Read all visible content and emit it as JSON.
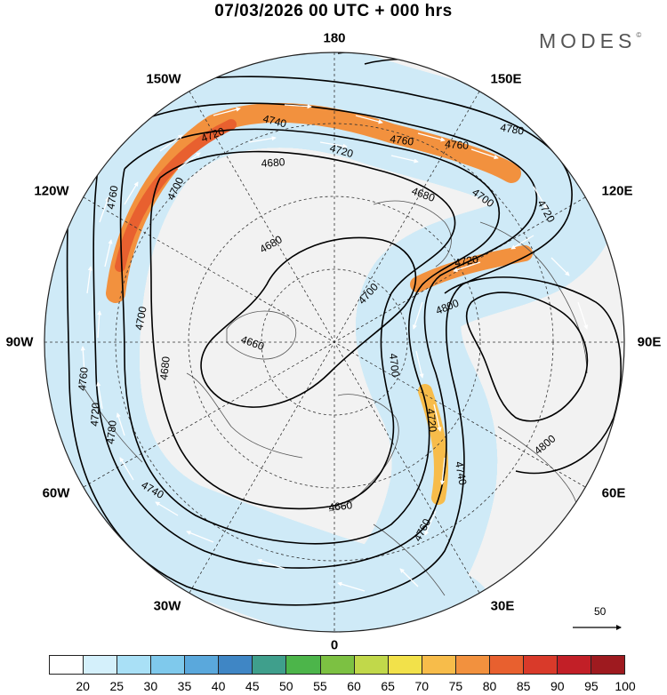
{
  "title": "07/03/2026  00 UTC  + 000 hrs",
  "brand": "MODES",
  "brand_mark": "©",
  "longitude_labels": {
    "lon_180": "180",
    "lon_150e": "150E",
    "lon_120e": "120E",
    "lon_90e": "90E",
    "lon_60e": "60E",
    "lon_30e": "30E",
    "lon_0": "0",
    "lon_30w": "30W",
    "lon_60w": "60W",
    "lon_90w": "90W",
    "lon_120w": "120W",
    "lon_150w": "150W"
  },
  "vector_scale_label": "50",
  "colorbar": {
    "ticks": [
      "20",
      "25",
      "30",
      "35",
      "40",
      "45",
      "50",
      "55",
      "60",
      "65",
      "70",
      "75",
      "80",
      "85",
      "90",
      "95",
      "100"
    ],
    "colors": [
      "#ffffff",
      "#d4f0fb",
      "#a9e0f6",
      "#7fc9ec",
      "#5aa8dc",
      "#3f86c5",
      "#3f9f8c",
      "#4cb54a",
      "#7cc142",
      "#c1d84a",
      "#f2e14a",
      "#f7bc4a",
      "#f2913e",
      "#e8602f",
      "#d93a2a",
      "#c21f27",
      "#9e1a1f"
    ]
  },
  "contour_labels": {
    "a": "4740",
    "b": "4720",
    "c": "4760",
    "d": "4760",
    "e": "4780",
    "f": "4720",
    "g": "4680",
    "h": "4760",
    "i": "4700",
    "j": "4680",
    "k": "4700",
    "l": "4720",
    "m": "4680",
    "n": "4700",
    "o": "4720",
    "p": "4660",
    "q": "4700",
    "r": "4680",
    "s": "4800",
    "t": "4700",
    "u": "4720",
    "v": "4760",
    "w": "4740",
    "x": "4800",
    "y": "4660",
    "z": "4760",
    "aa": "4720",
    "ab": "4740",
    "ac": "4780"
  }
}
